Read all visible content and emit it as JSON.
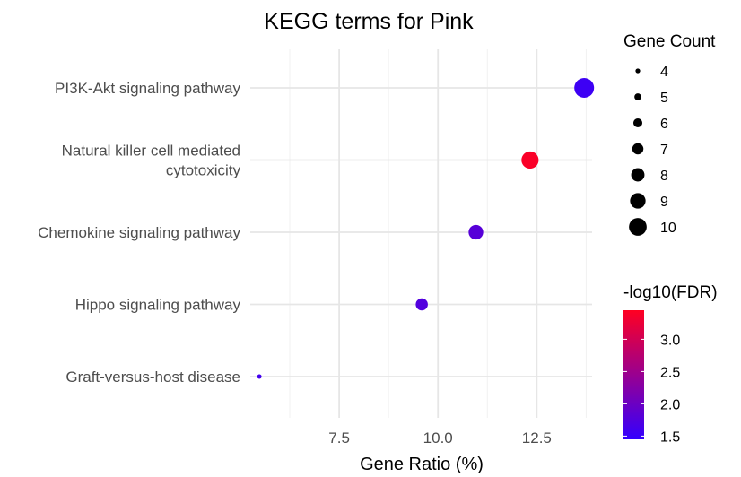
{
  "chart_data": {
    "type": "scatter",
    "title": "KEGG terms for Pink",
    "xlabel": "Gene Ratio (%)",
    "ylabel": "",
    "xlim": [
      5.25,
      13.9
    ],
    "xticks": [
      7.5,
      10.0,
      12.5
    ],
    "xtick_labels": [
      "7.5",
      "10.0",
      "12.5"
    ],
    "grid": true,
    "legend_position": "right",
    "categories": [
      [
        "PI3K-Akt signaling pathway"
      ],
      [
        "Natural killer cell mediated",
        "cytotoxicity"
      ],
      [
        "Chemokine signaling pathway"
      ],
      [
        "Hippo signaling pathway"
      ],
      [
        "Graft-versus-host disease"
      ]
    ],
    "points": [
      {
        "x": 13.7,
        "gene_count": 10,
        "neg_log10_fdr": 1.55
      },
      {
        "x": 12.33,
        "gene_count": 9,
        "neg_log10_fdr": 3.4
      },
      {
        "x": 10.96,
        "gene_count": 8,
        "neg_log10_fdr": 1.8
      },
      {
        "x": 9.59,
        "gene_count": 7,
        "neg_log10_fdr": 1.75
      },
      {
        "x": 5.48,
        "gene_count": 4,
        "neg_log10_fdr": 1.6
      }
    ],
    "size_legend": {
      "title": "Gene Count",
      "values": [
        4,
        5,
        6,
        7,
        8,
        9,
        10
      ],
      "labels": [
        "4",
        "5",
        "6",
        "7",
        "8",
        "9",
        "10"
      ]
    },
    "color_legend": {
      "title": "-log10(FDR)",
      "min": 1.45,
      "max": 3.45,
      "low_color": "#3300ff",
      "high_color": "#ff0022",
      "ticks": [
        1.5,
        2.0,
        2.5,
        3.0
      ],
      "tick_labels": [
        "1.5",
        "2.0",
        "2.5",
        "3.0"
      ]
    }
  }
}
